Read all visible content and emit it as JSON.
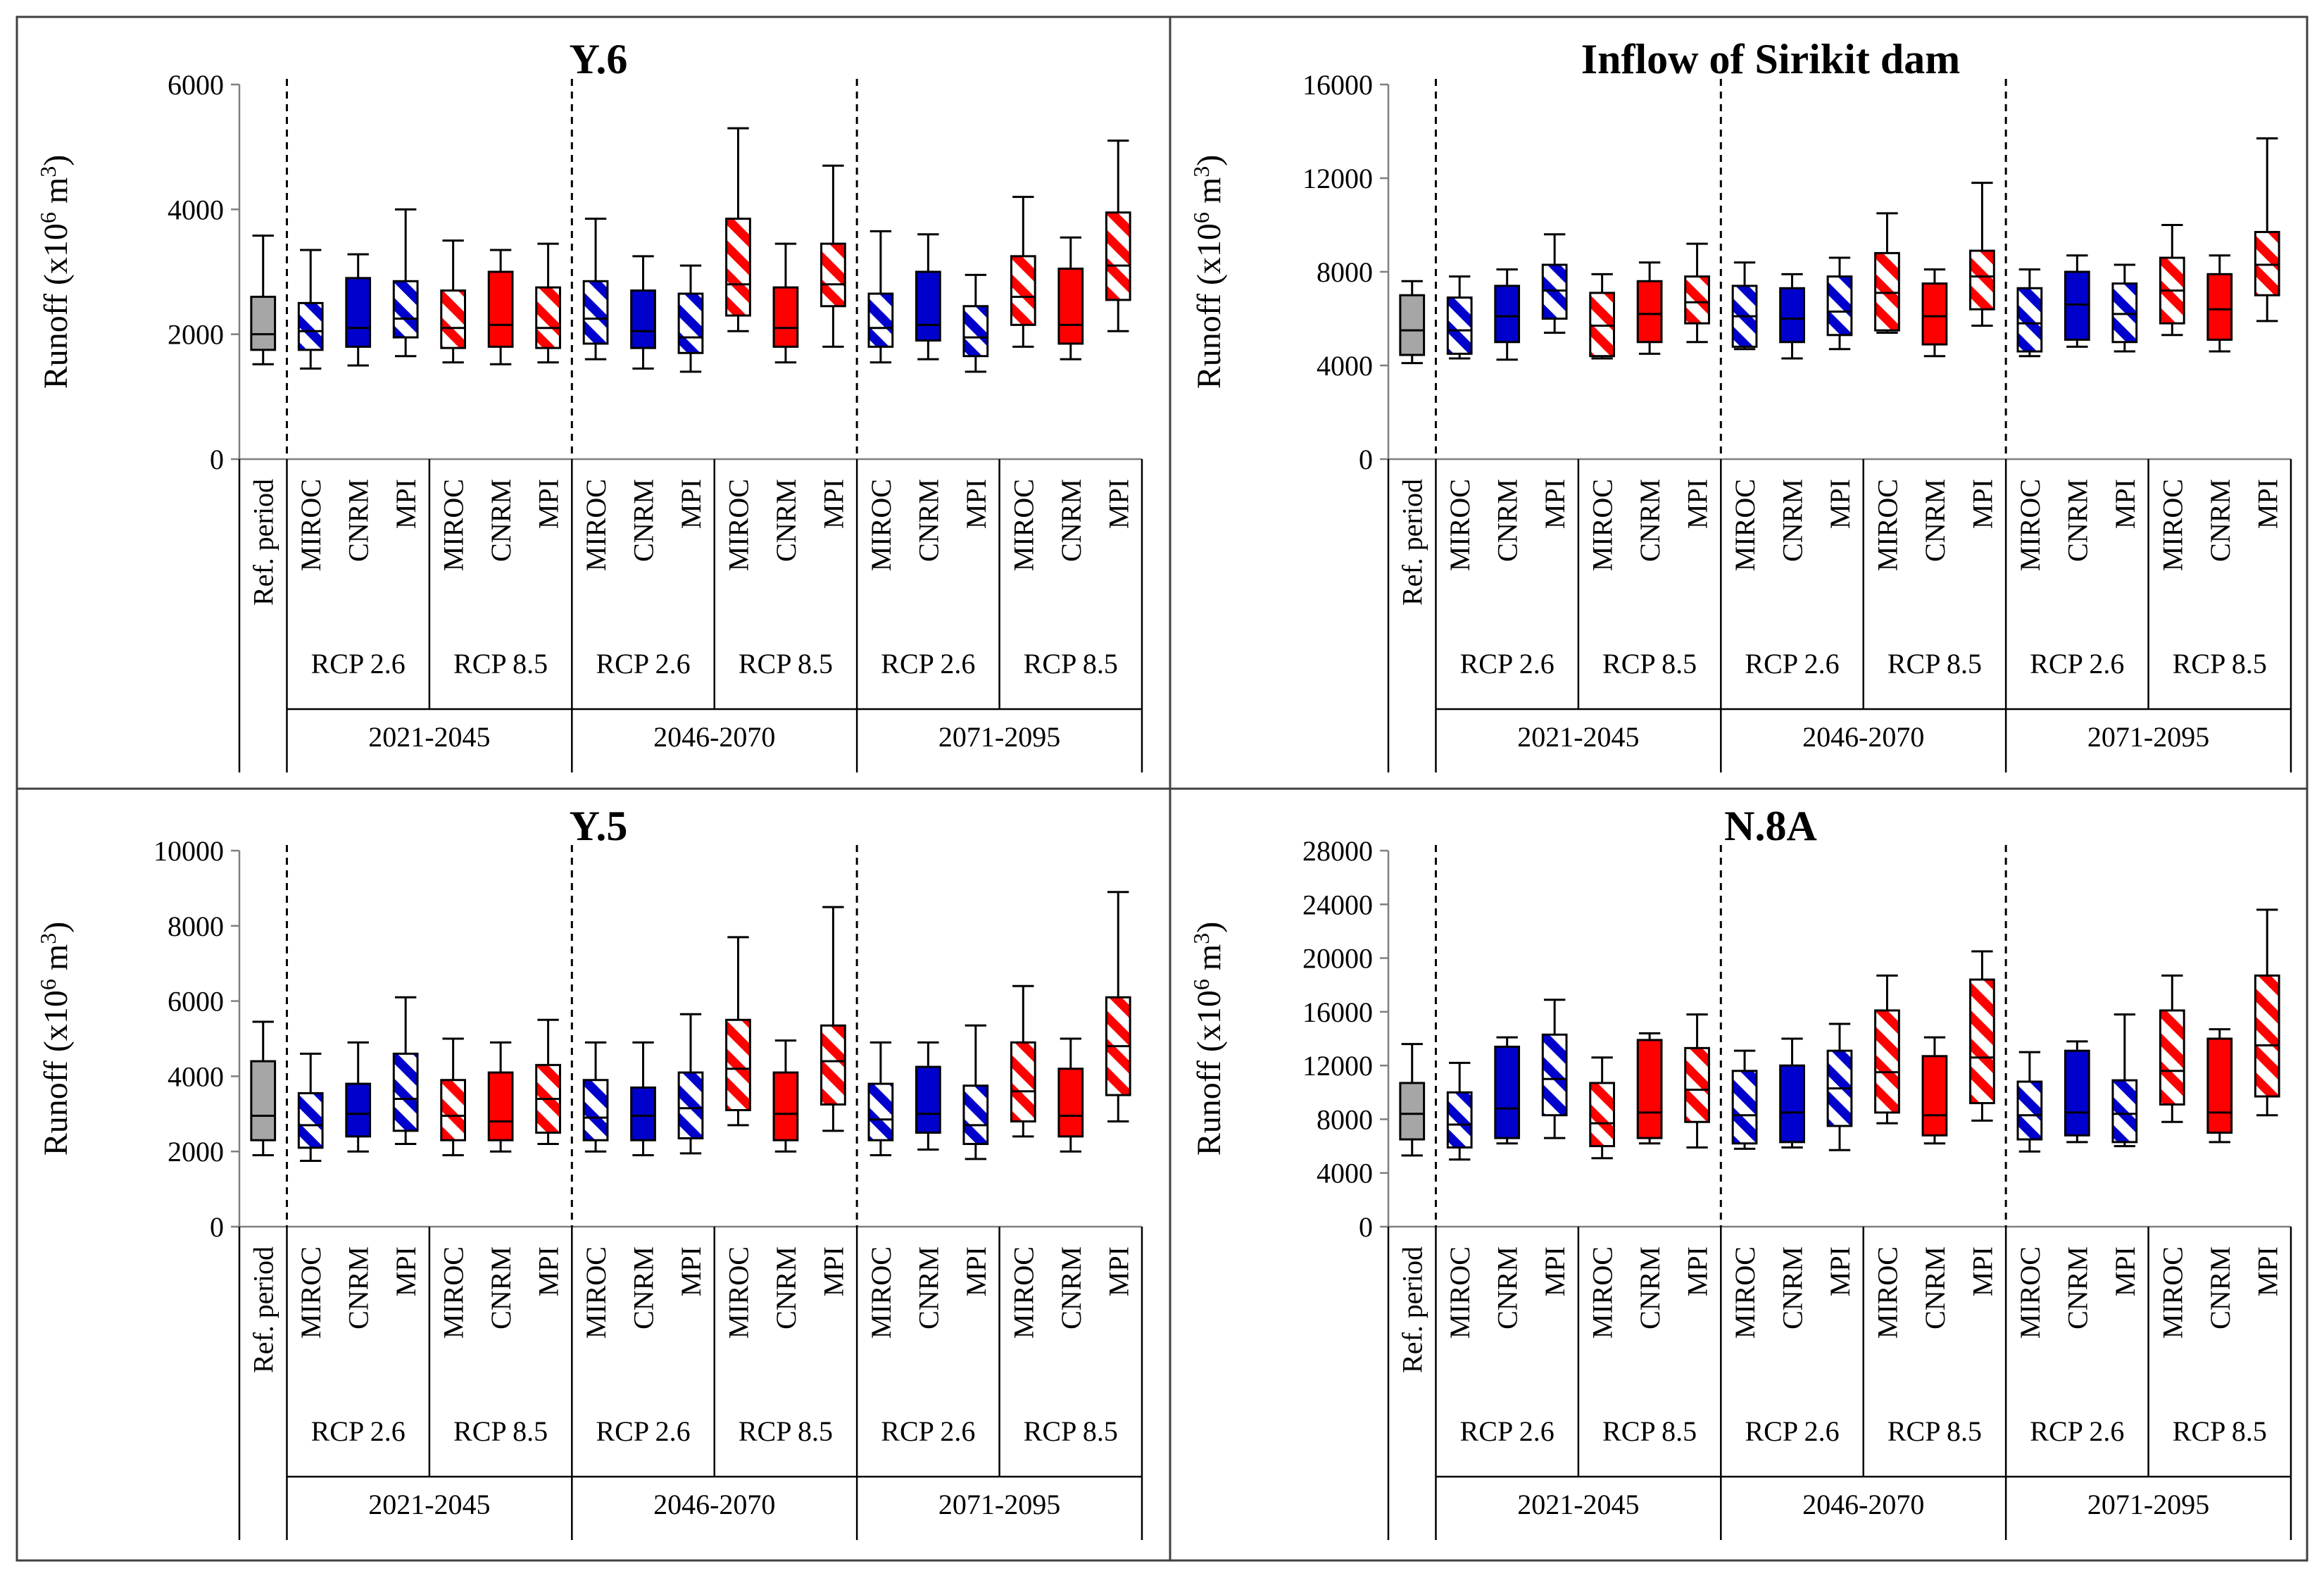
{
  "chart_data": {
    "type": "boxplot",
    "layout": "2x2",
    "series_colors": {
      "ref": "#a6a6a6",
      "rcp26": "#0000cc",
      "rcp85": "#ff0000"
    },
    "category_labels": [
      "Ref. period",
      "MIROC",
      "CNRM",
      "MPI",
      "MIROC",
      "CNRM",
      "MPI",
      "MIROC",
      "CNRM",
      "MPI",
      "MIROC",
      "CNRM",
      "MPI",
      "MIROC",
      "CNRM",
      "MPI",
      "MIROC",
      "CNRM",
      "MPI"
    ],
    "scenario_labels": [
      "RCP 2.6",
      "RCP 8.5",
      "RCP 2.6",
      "RCP 8.5",
      "RCP 2.6",
      "RCP 8.5"
    ],
    "period_labels": [
      "2021-2045",
      "2046-2070",
      "2071-2095"
    ],
    "ylabel": "Runoff (x10",
    "ylabel_exp": "6",
    "ylabel_unit": " m",
    "ylabel_unit_exp": "3",
    "ylabel_close": ")",
    "panels": [
      {
        "title": "Y.6",
        "ylim": [
          0,
          6000
        ],
        "yticks": [
          "0",
          "2000",
          "4000",
          "6000"
        ],
        "boxes": [
          {
            "min": 1520,
            "q1": 1750,
            "median": 2000,
            "q3": 2600,
            "max": 3580
          },
          {
            "min": 1450,
            "q1": 1750,
            "median": 2050,
            "q3": 2500,
            "max": 3350
          },
          {
            "min": 1500,
            "q1": 1800,
            "median": 2100,
            "q3": 2900,
            "max": 3280
          },
          {
            "min": 1650,
            "q1": 1950,
            "median": 2250,
            "q3": 2850,
            "max": 4000
          },
          {
            "min": 1550,
            "q1": 1780,
            "median": 2100,
            "q3": 2700,
            "max": 3500
          },
          {
            "min": 1520,
            "q1": 1800,
            "median": 2150,
            "q3": 3000,
            "max": 3350
          },
          {
            "min": 1550,
            "q1": 1780,
            "median": 2100,
            "q3": 2750,
            "max": 3450
          },
          {
            "min": 1600,
            "q1": 1850,
            "median": 2250,
            "q3": 2850,
            "max": 3850
          },
          {
            "min": 1450,
            "q1": 1780,
            "median": 2050,
            "q3": 2700,
            "max": 3250
          },
          {
            "min": 1400,
            "q1": 1700,
            "median": 1950,
            "q3": 2650,
            "max": 3100
          },
          {
            "min": 2050,
            "q1": 2300,
            "median": 2800,
            "q3": 3850,
            "max": 5300
          },
          {
            "min": 1550,
            "q1": 1800,
            "median": 2100,
            "q3": 2750,
            "max": 3450
          },
          {
            "min": 1800,
            "q1": 2450,
            "median": 2800,
            "q3": 3450,
            "max": 4700
          },
          {
            "min": 1550,
            "q1": 1800,
            "median": 2100,
            "q3": 2650,
            "max": 3650
          },
          {
            "min": 1600,
            "q1": 1900,
            "median": 2150,
            "q3": 3000,
            "max": 3600
          },
          {
            "min": 1400,
            "q1": 1650,
            "median": 1950,
            "q3": 2450,
            "max": 2950
          },
          {
            "min": 1800,
            "q1": 2150,
            "median": 2600,
            "q3": 3250,
            "max": 4200
          },
          {
            "min": 1600,
            "q1": 1850,
            "median": 2150,
            "q3": 3050,
            "max": 3550
          },
          {
            "min": 2050,
            "q1": 2550,
            "median": 3100,
            "q3": 3950,
            "max": 5100
          }
        ]
      },
      {
        "title": "Inflow of Sirikit dam",
        "ylim": [
          0,
          16000
        ],
        "yticks": [
          "0",
          "4000",
          "8000",
          "12000",
          "16000"
        ],
        "boxes": [
          {
            "min": 4100,
            "q1": 4450,
            "median": 5500,
            "q3": 7000,
            "max": 7600
          },
          {
            "min": 4300,
            "q1": 4500,
            "median": 5500,
            "q3": 6900,
            "max": 7800
          },
          {
            "min": 4250,
            "q1": 5000,
            "median": 6100,
            "q3": 7400,
            "max": 8100
          },
          {
            "min": 5400,
            "q1": 6000,
            "median": 7200,
            "q3": 8300,
            "max": 9600
          },
          {
            "min": 4300,
            "q1": 4400,
            "median": 5700,
            "q3": 7100,
            "max": 7900
          },
          {
            "min": 4500,
            "q1": 5000,
            "median": 6200,
            "q3": 7600,
            "max": 8400
          },
          {
            "min": 5000,
            "q1": 5800,
            "median": 6700,
            "q3": 7800,
            "max": 9200
          },
          {
            "min": 4700,
            "q1": 4800,
            "median": 6100,
            "q3": 7400,
            "max": 8400
          },
          {
            "min": 4300,
            "q1": 5000,
            "median": 6000,
            "q3": 7300,
            "max": 7900
          },
          {
            "min": 4700,
            "q1": 5300,
            "median": 6300,
            "q3": 7800,
            "max": 8600
          },
          {
            "min": 5400,
            "q1": 5500,
            "median": 7100,
            "q3": 8800,
            "max": 10500
          },
          {
            "min": 4400,
            "q1": 4900,
            "median": 6100,
            "q3": 7500,
            "max": 8100
          },
          {
            "min": 5700,
            "q1": 6400,
            "median": 7800,
            "q3": 8900,
            "max": 11800
          },
          {
            "min": 4400,
            "q1": 4600,
            "median": 5800,
            "q3": 7300,
            "max": 8100
          },
          {
            "min": 4800,
            "q1": 5100,
            "median": 6600,
            "q3": 8000,
            "max": 8700
          },
          {
            "min": 4600,
            "q1": 5000,
            "median": 6200,
            "q3": 7500,
            "max": 8300
          },
          {
            "min": 5300,
            "q1": 5800,
            "median": 7200,
            "q3": 8600,
            "max": 10000
          },
          {
            "min": 4600,
            "q1": 5100,
            "median": 6400,
            "q3": 7900,
            "max": 8700
          },
          {
            "min": 5900,
            "q1": 7000,
            "median": 8300,
            "q3": 9700,
            "max": 13700
          }
        ]
      },
      {
        "title": "Y.5",
        "ylim": [
          0,
          10000
        ],
        "yticks": [
          "0",
          "2000",
          "4000",
          "6000",
          "8000",
          "10000"
        ],
        "boxes": [
          {
            "min": 1900,
            "q1": 2300,
            "median": 2950,
            "q3": 4400,
            "max": 5450
          },
          {
            "min": 1750,
            "q1": 2100,
            "median": 2700,
            "q3": 3550,
            "max": 4600
          },
          {
            "min": 2000,
            "q1": 2400,
            "median": 3000,
            "q3": 3800,
            "max": 4900
          },
          {
            "min": 2200,
            "q1": 2550,
            "median": 3400,
            "q3": 4600,
            "max": 6100
          },
          {
            "min": 1900,
            "q1": 2300,
            "median": 2950,
            "q3": 3900,
            "max": 5000
          },
          {
            "min": 2000,
            "q1": 2300,
            "median": 2800,
            "q3": 4100,
            "max": 4900
          },
          {
            "min": 2200,
            "q1": 2500,
            "median": 3400,
            "q3": 4300,
            "max": 5500
          },
          {
            "min": 2000,
            "q1": 2300,
            "median": 2900,
            "q3": 3900,
            "max": 4900
          },
          {
            "min": 1900,
            "q1": 2300,
            "median": 2950,
            "q3": 3700,
            "max": 4900
          },
          {
            "min": 1950,
            "q1": 2350,
            "median": 3150,
            "q3": 4100,
            "max": 5650
          },
          {
            "min": 2700,
            "q1": 3100,
            "median": 4200,
            "q3": 5500,
            "max": 7700
          },
          {
            "min": 2000,
            "q1": 2300,
            "median": 3000,
            "q3": 4100,
            "max": 4950
          },
          {
            "min": 2550,
            "q1": 3250,
            "median": 4400,
            "q3": 5350,
            "max": 8500
          },
          {
            "min": 1900,
            "q1": 2300,
            "median": 2850,
            "q3": 3800,
            "max": 4900
          },
          {
            "min": 2050,
            "q1": 2500,
            "median": 3000,
            "q3": 4250,
            "max": 4900
          },
          {
            "min": 1800,
            "q1": 2200,
            "median": 2700,
            "q3": 3750,
            "max": 5350
          },
          {
            "min": 2400,
            "q1": 2800,
            "median": 3600,
            "q3": 4900,
            "max": 6400
          },
          {
            "min": 2000,
            "q1": 2400,
            "median": 2950,
            "q3": 4200,
            "max": 5000
          },
          {
            "min": 2800,
            "q1": 3500,
            "median": 4800,
            "q3": 6100,
            "max": 8900
          }
        ]
      },
      {
        "title": "N.8A",
        "ylim": [
          0,
          28000
        ],
        "yticks": [
          "0",
          "4000",
          "8000",
          "12000",
          "16000",
          "20000",
          "24000",
          "28000"
        ],
        "boxes": [
          {
            "min": 5300,
            "q1": 6500,
            "median": 8400,
            "q3": 10700,
            "max": 13600
          },
          {
            "min": 5000,
            "q1": 5900,
            "median": 7600,
            "q3": 10000,
            "max": 12200
          },
          {
            "min": 6200,
            "q1": 6600,
            "median": 8800,
            "q3": 13400,
            "max": 14100
          },
          {
            "min": 6600,
            "q1": 8300,
            "median": 11000,
            "q3": 14300,
            "max": 16900
          },
          {
            "min": 5100,
            "q1": 6000,
            "median": 7700,
            "q3": 10700,
            "max": 12600
          },
          {
            "min": 6200,
            "q1": 6600,
            "median": 8500,
            "q3": 13900,
            "max": 14400
          },
          {
            "min": 5900,
            "q1": 7800,
            "median": 10200,
            "q3": 13300,
            "max": 15800
          },
          {
            "min": 5800,
            "q1": 6200,
            "median": 8300,
            "q3": 11600,
            "max": 13100
          },
          {
            "min": 5900,
            "q1": 6300,
            "median": 8500,
            "q3": 12000,
            "max": 14000
          },
          {
            "min": 5700,
            "q1": 7500,
            "median": 10300,
            "q3": 13100,
            "max": 15100
          },
          {
            "min": 7700,
            "q1": 8500,
            "median": 11500,
            "q3": 16100,
            "max": 18700
          },
          {
            "min": 6200,
            "q1": 6800,
            "median": 8300,
            "q3": 12700,
            "max": 14100
          },
          {
            "min": 7900,
            "q1": 9200,
            "median": 12600,
            "q3": 18400,
            "max": 20500
          },
          {
            "min": 5600,
            "q1": 6500,
            "median": 8300,
            "q3": 10800,
            "max": 13000
          },
          {
            "min": 6300,
            "q1": 6800,
            "median": 8500,
            "q3": 13100,
            "max": 13800
          },
          {
            "min": 6000,
            "q1": 6300,
            "median": 8400,
            "q3": 10900,
            "max": 15800
          },
          {
            "min": 7800,
            "q1": 9100,
            "median": 11600,
            "q3": 16100,
            "max": 18700
          },
          {
            "min": 6300,
            "q1": 7000,
            "median": 8500,
            "q3": 14000,
            "max": 14700
          },
          {
            "min": 8300,
            "q1": 9700,
            "median": 13500,
            "q3": 18700,
            "max": 23600
          }
        ]
      }
    ]
  }
}
